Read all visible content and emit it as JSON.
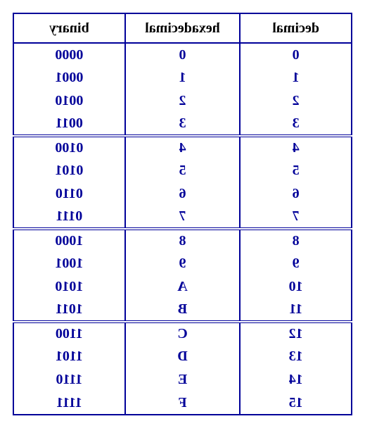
{
  "table": {
    "border_color": "#000099",
    "text_color": "#000099",
    "header_color": "#000000",
    "background_color": "#ffffff",
    "font_family": "Times New Roman",
    "font_size_pt": 15,
    "font_weight": "bold",
    "columns": [
      "decimal",
      "hexadecimal",
      "binary"
    ],
    "groups": [
      [
        {
          "decimal": "0",
          "hex": "0",
          "binary": "0000"
        },
        {
          "decimal": "1",
          "hex": "1",
          "binary": "0001"
        },
        {
          "decimal": "2",
          "hex": "2",
          "binary": "0010"
        },
        {
          "decimal": "3",
          "hex": "3",
          "binary": "0011"
        }
      ],
      [
        {
          "decimal": "4",
          "hex": "4",
          "binary": "0100"
        },
        {
          "decimal": "5",
          "hex": "5",
          "binary": "0101"
        },
        {
          "decimal": "6",
          "hex": "6",
          "binary": "0110"
        },
        {
          "decimal": "7",
          "hex": "7",
          "binary": "0111"
        }
      ],
      [
        {
          "decimal": "8",
          "hex": "8",
          "binary": "1000"
        },
        {
          "decimal": "9",
          "hex": "9",
          "binary": "1001"
        },
        {
          "decimal": "10",
          "hex": "A",
          "binary": "1010"
        },
        {
          "decimal": "11",
          "hex": "B",
          "binary": "1011"
        }
      ],
      [
        {
          "decimal": "12",
          "hex": "C",
          "binary": "1100"
        },
        {
          "decimal": "13",
          "hex": "D",
          "binary": "1101"
        },
        {
          "decimal": "14",
          "hex": "E",
          "binary": "1110"
        },
        {
          "decimal": "15",
          "hex": "F",
          "binary": "1111"
        }
      ]
    ]
  }
}
